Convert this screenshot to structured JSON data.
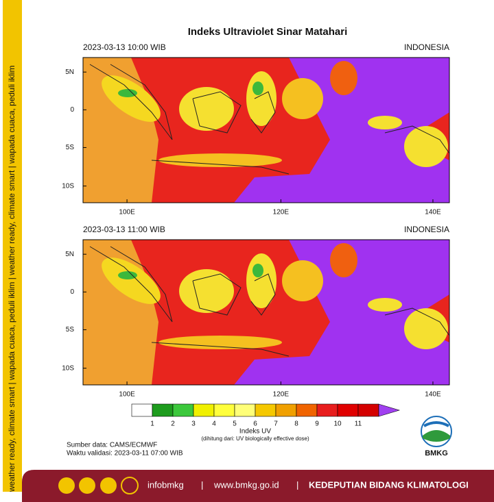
{
  "side_strip": "weather ready, climate smart | wapada cuaca, peduli iklim | weather ready, climate smart | wapada cuaca, peduli iklim",
  "title": "Indeks Ultraviolet Sinar Matahari",
  "maps": [
    {
      "time": "2023-03-13  10:00 WIB",
      "region": "INDONESIA",
      "lat_labels": [
        "5N",
        "0",
        "5S",
        "10S"
      ],
      "lon_labels": [
        "100E",
        "120E",
        "140E"
      ]
    },
    {
      "time": "2023-03-13  11:00 WIB",
      "region": "INDONESIA",
      "lat_labels": [
        "5N",
        "0",
        "5S",
        "10S"
      ],
      "lon_labels": [
        "100E",
        "120E",
        "140E"
      ]
    }
  ],
  "colorbar": {
    "labels": [
      "1",
      "2",
      "3",
      "4",
      "5",
      "6",
      "7",
      "8",
      "9",
      "10",
      "11"
    ],
    "colors": [
      "#ffffff",
      "#1e9c1e",
      "#3cc83c",
      "#f0f000",
      "#ffff3c",
      "#ffff78",
      "#f5c800",
      "#f0a000",
      "#f06400",
      "#e81e1e",
      "#e00000",
      "#d40000",
      "#a040f0"
    ],
    "title": "Indeks UV",
    "note": "(dihitung dari: UV biologically effective dose)"
  },
  "source": "Sumber data: CAMS/ECMWF",
  "validity": "Waktu validasi: 2023-03-11 07:00 WIB",
  "logo": "BMKG",
  "footer": {
    "social": "infobmkg",
    "sep1": "|",
    "website": "www.bmkg.go.id",
    "sep2": "|",
    "division": "KEDEPUTIAN BIDANG KLIMATOLOGI"
  }
}
